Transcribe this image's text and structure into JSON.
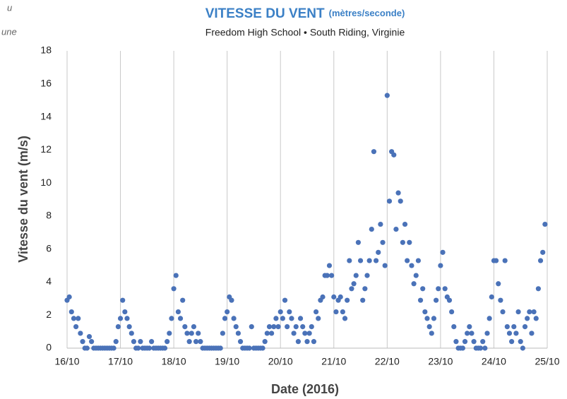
{
  "chart_data": {
    "type": "scatter",
    "title": "VITESSE DU VENT",
    "title_unit": "(mètres/seconde)",
    "subtitle": "Freedom High School • South Riding, Virginie",
    "annotations": [
      "u",
      "une"
    ],
    "x_label": "Date (2016)",
    "y_label": "Vitesse du vent (m/s)",
    "color": "#4a72b8",
    "grid": "x",
    "xlim": [
      0,
      216
    ],
    "xticks": [
      {
        "value": 0,
        "label": "16/10"
      },
      {
        "value": 24,
        "label": "17/10"
      },
      {
        "value": 48,
        "label": "18/10"
      },
      {
        "value": 72,
        "label": "19/10"
      },
      {
        "value": 96,
        "label": "20/10"
      },
      {
        "value": 120,
        "label": "21/10"
      },
      {
        "value": 144,
        "label": "22/10"
      },
      {
        "value": 168,
        "label": "23/10"
      },
      {
        "value": 192,
        "label": "24/10"
      },
      {
        "value": 216,
        "label": "25/10"
      }
    ],
    "ylim": [
      0,
      18
    ],
    "yticks": [
      0,
      2,
      4,
      6,
      8,
      10,
      12,
      14,
      16,
      18
    ],
    "x": [
      0,
      1,
      2,
      3,
      4,
      5,
      6,
      7,
      8,
      9,
      10,
      11,
      12,
      13,
      14,
      15,
      16,
      17,
      18,
      19,
      20,
      21,
      22,
      23,
      24,
      25,
      26,
      27,
      28,
      29,
      30,
      31,
      32,
      33,
      34,
      35,
      36,
      37,
      38,
      39,
      40,
      41,
      42,
      43,
      44,
      45,
      46,
      47,
      48,
      49,
      50,
      51,
      52,
      53,
      54,
      55,
      56,
      57,
      58,
      59,
      60,
      61,
      62,
      63,
      64,
      65,
      66,
      67,
      68,
      69,
      70,
      71,
      72,
      73,
      74,
      75,
      76,
      77,
      78,
      79,
      80,
      81,
      82,
      83,
      84,
      85,
      86,
      87,
      88,
      89,
      90,
      91,
      92,
      93,
      94,
      95,
      96,
      97,
      98,
      99,
      100,
      101,
      102,
      103,
      104,
      105,
      106,
      107,
      108,
      109,
      110,
      111,
      112,
      113,
      114,
      115,
      116,
      117,
      118,
      119,
      120,
      121,
      122,
      123,
      124,
      125,
      126,
      127,
      128,
      129,
      130,
      131,
      132,
      133,
      134,
      135,
      136,
      137,
      138,
      139,
      140,
      141,
      142,
      143,
      144,
      145,
      146,
      147,
      148,
      149,
      150,
      151,
      152,
      153,
      154,
      155,
      156,
      157,
      158,
      159,
      160,
      161,
      162,
      163,
      164,
      165,
      166,
      167,
      168,
      169,
      170,
      171,
      172,
      173,
      174,
      175,
      176,
      177,
      178,
      179,
      180,
      181,
      182,
      183,
      184,
      185,
      186,
      187,
      188,
      189,
      190,
      191,
      192,
      193,
      194,
      195,
      196,
      197,
      198,
      199,
      200,
      201,
      202,
      203,
      204,
      205,
      206,
      207,
      208,
      209,
      210,
      211,
      212,
      213,
      214,
      215
    ],
    "values": [
      2.9,
      3.1,
      2.2,
      1.8,
      1.3,
      1.8,
      0.9,
      0.4,
      0,
      0,
      0.7,
      0.4,
      0,
      0,
      0,
      0,
      0,
      0,
      0,
      0,
      0,
      0,
      0.4,
      1.3,
      1.8,
      2.9,
      2.2,
      1.8,
      1.3,
      0.9,
      0.4,
      0,
      0,
      0.4,
      0,
      0,
      0,
      0,
      0.4,
      0,
      0,
      0,
      0,
      0,
      0,
      0.4,
      0.9,
      1.8,
      3.6,
      4.4,
      2.2,
      1.8,
      2.9,
      1.3,
      0.9,
      0.4,
      0.9,
      1.3,
      0.4,
      0.9,
      0.4,
      0,
      0,
      0,
      0,
      0,
      0,
      0,
      0,
      0,
      0.9,
      1.8,
      2.2,
      3.1,
      2.9,
      1.8,
      1.3,
      0.9,
      0.4,
      0,
      0,
      0,
      0,
      1.3,
      0,
      0,
      0,
      0,
      0,
      0.4,
      0.9,
      1.3,
      0.9,
      1.3,
      1.8,
      1.3,
      2.2,
      1.8,
      2.9,
      1.3,
      2.2,
      1.8,
      0.9,
      1.3,
      0.4,
      1.8,
      1.3,
      0.9,
      0.4,
      0.9,
      1.3,
      0.4,
      2.2,
      1.8,
      2.9,
      3.1,
      4.4,
      4.4,
      5.0,
      4.4,
      3.1,
      2.2,
      2.9,
      3.1,
      2.2,
      1.8,
      2.9,
      5.3,
      3.6,
      3.9,
      4.4,
      6.4,
      5.3,
      2.9,
      3.6,
      4.4,
      5.3,
      7.2,
      11.9,
      5.3,
      5.8,
      7.5,
      6.4,
      5.0,
      15.3,
      8.9,
      11.9,
      11.7,
      7.2,
      9.4,
      8.9,
      6.4,
      7.5,
      5.3,
      6.4,
      5.0,
      3.9,
      4.4,
      5.3,
      2.9,
      3.6,
      2.2,
      1.8,
      1.3,
      0.9,
      1.8,
      2.9,
      3.6,
      5.0,
      5.8,
      3.6,
      3.1,
      2.9,
      2.2,
      1.3,
      0.4,
      0,
      0,
      0,
      0.4,
      0.9,
      1.3,
      0.9,
      0.4,
      0,
      0,
      0,
      0.4,
      0,
      0.9,
      1.8,
      3.1,
      5.3,
      5.3,
      3.9,
      2.9,
      2.2,
      5.3,
      1.3,
      0.9,
      0.4,
      1.3,
      0.9,
      2.2,
      0.4,
      0,
      1.3,
      1.8,
      2.2,
      0.9,
      2.2,
      1.8,
      3.6,
      5.3,
      5.8,
      7.5
    ]
  }
}
